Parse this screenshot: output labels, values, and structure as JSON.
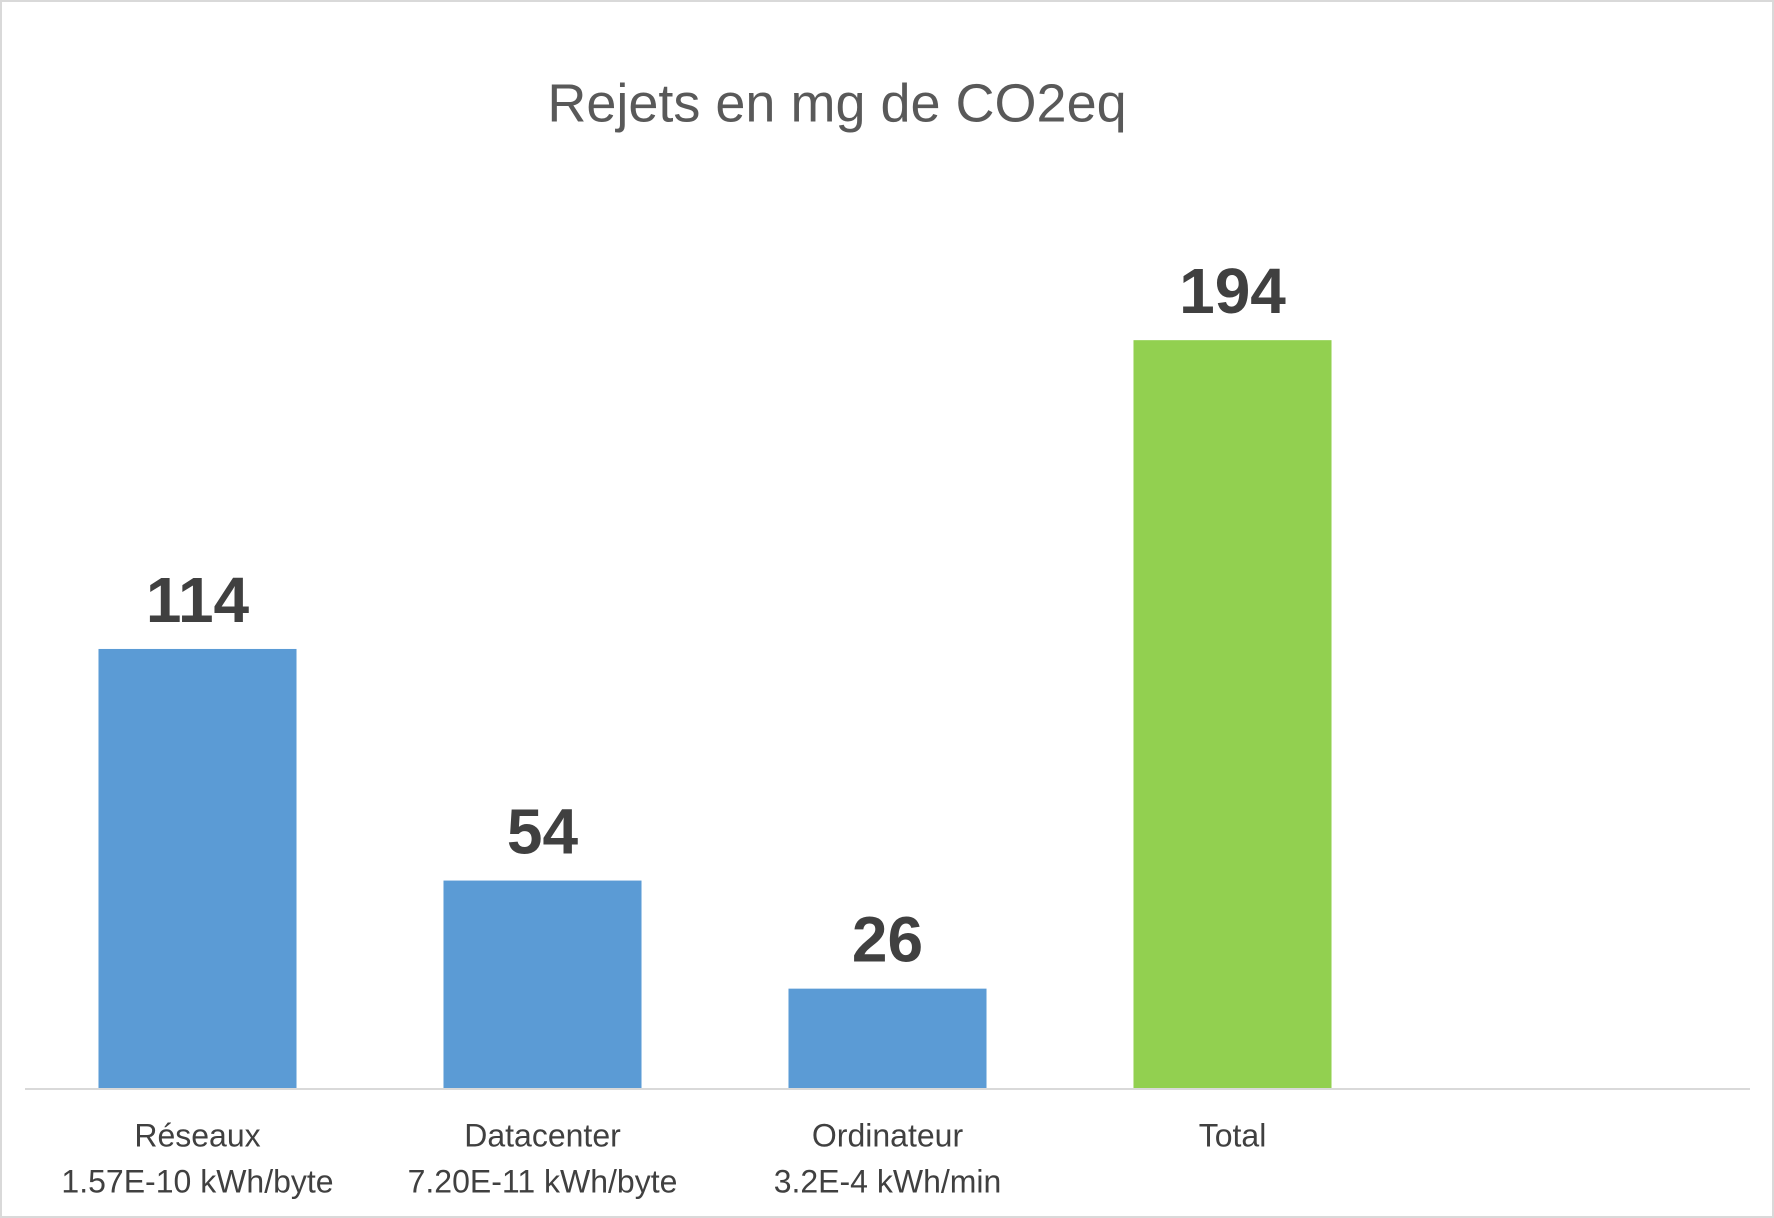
{
  "chart_data": {
    "type": "bar",
    "title": "Rejets en mg de CO2eq",
    "categories": [
      [
        "Réseaux",
        "1.57E-10 kWh/byte"
      ],
      [
        "Datacenter",
        "7.20E-11 kWh/byte"
      ],
      [
        "Ordinateur",
        "3.2E-4 kWh/min"
      ],
      [
        "Total"
      ],
      null
    ],
    "values": [
      114,
      54,
      26,
      194,
      null
    ],
    "colors": [
      "#5b9bd5",
      "#5b9bd5",
      "#5b9bd5",
      "#92d050",
      null
    ],
    "ylim": [
      0,
      250
    ]
  }
}
